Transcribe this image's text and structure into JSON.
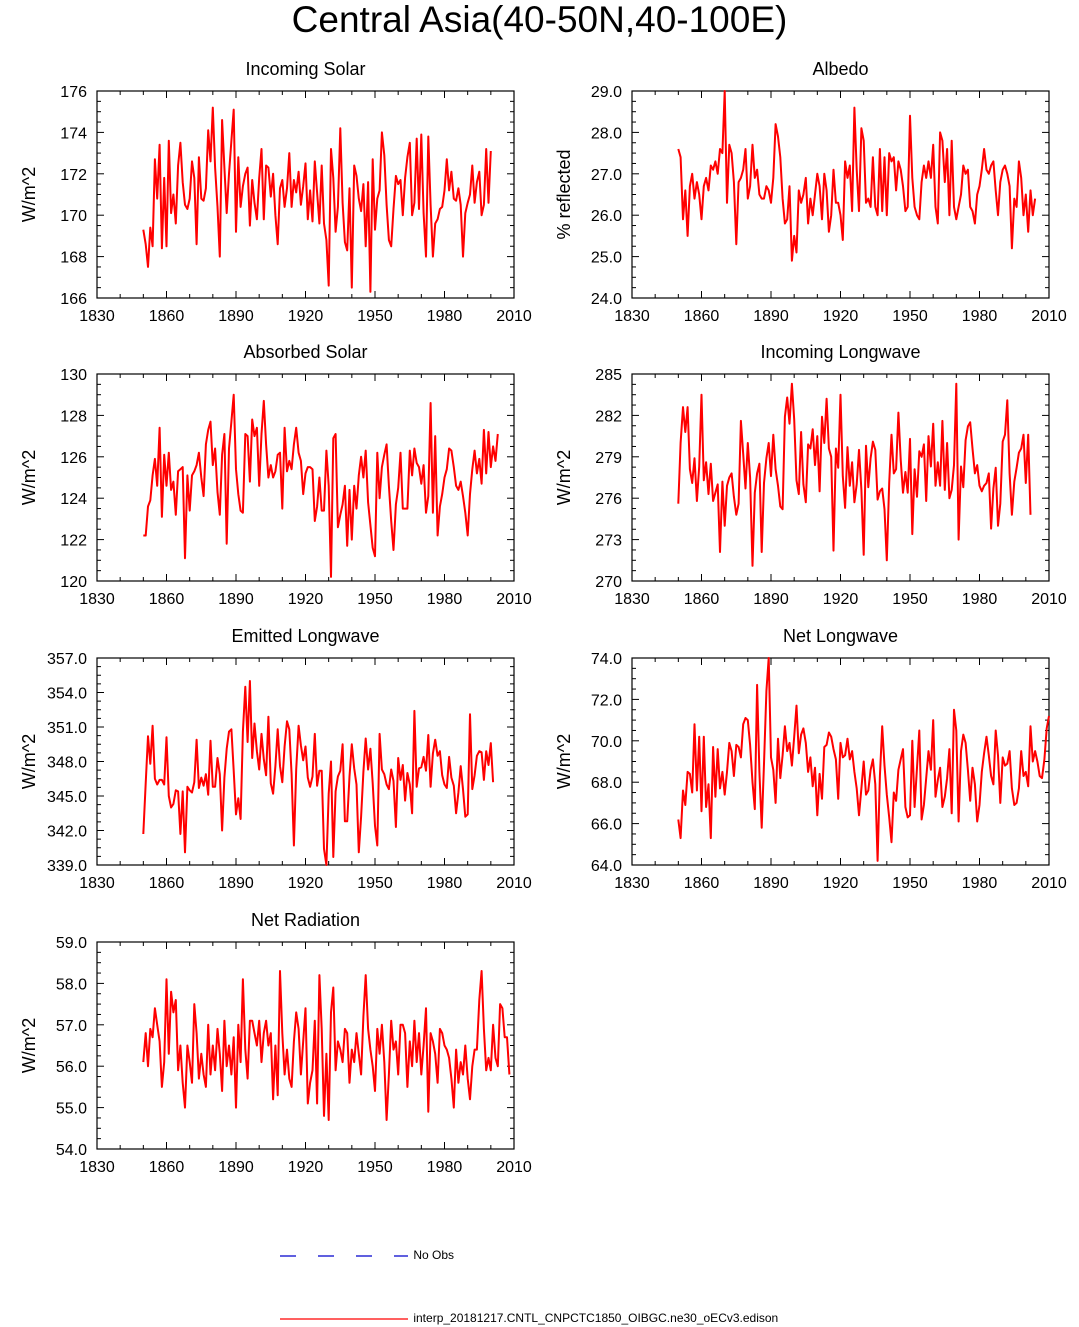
{
  "title": "Central Asia(40-50N,40-100E)",
  "legend": {
    "obs_label": "No Obs",
    "obs_color": "#0000cc",
    "model_label": "interp_20181217.CNTL_CNPCTC1850_OIBGC.ne30_oECv3.edison",
    "model_color": "#ff0000"
  },
  "chart_data": [
    {
      "type": "line",
      "title": "Incoming Solar",
      "ylabel": "W/m^2",
      "xlim": [
        1830,
        2010
      ],
      "ylim": [
        166,
        176
      ],
      "xticks": [
        1830,
        1860,
        1890,
        1920,
        1950,
        1980,
        2010
      ],
      "yticks": [
        "166",
        "168",
        "170",
        "172",
        "174",
        "176"
      ],
      "x_start": 1850,
      "x_step": 1,
      "values": [
        169.3,
        168.6,
        167.5,
        169.4,
        168.5,
        172.7,
        170.8,
        173.4,
        168.4,
        171.8,
        168.5,
        173.6,
        170.1,
        171.0,
        169.6,
        172.4,
        173.5,
        171.6,
        170.5,
        170.3,
        170.8,
        172.6,
        171.8,
        168.6,
        172.8,
        170.8,
        170.7,
        171.3,
        174.1,
        172.6,
        175.2,
        172.3,
        170.4,
        168.0,
        174.6,
        172.3,
        170.1,
        172.0,
        173.6,
        175.1,
        169.2,
        172.8,
        170.4,
        171.4,
        172.0,
        172.3,
        169.5,
        171.7,
        170.6,
        169.8,
        171.8,
        173.2,
        169.8,
        172.4,
        172.3,
        170.9,
        172.0,
        170.0,
        168.6,
        171.3,
        171.7,
        170.4,
        171.3,
        173.0,
        170.4,
        171.7,
        171.1,
        172.1,
        170.5,
        171.4,
        172.5,
        169.8,
        171.2,
        169.7,
        172.6,
        171.1,
        169.6,
        172.4,
        169.6,
        168.8,
        166.6,
        173.2,
        171.8,
        169.2,
        170.4,
        174.2,
        170.6,
        168.7,
        168.3,
        171.3,
        166.5,
        172.4,
        171.9,
        170.8,
        170.2,
        171.5,
        168.5,
        171.6,
        166.3,
        172.7,
        169.3,
        170.8,
        171.2,
        174.0,
        172.9,
        170.5,
        168.8,
        168.5,
        170.3,
        171.9,
        171.5,
        171.7,
        170.0,
        171.8,
        172.8,
        173.5,
        170.0,
        170.6,
        173.7,
        170.3,
        173.9,
        170.1,
        168.0,
        173.8,
        170.5,
        168.0,
        169.6,
        169.8,
        170.3,
        170.4,
        171.2,
        172.7,
        171.2,
        172.1,
        170.8,
        170.7,
        171.3,
        170.5,
        168.0,
        170.1,
        170.6,
        171.0,
        172.4,
        170.6,
        171.6,
        172.1,
        170.0,
        170.5,
        173.2,
        170.6,
        173.1
      ]
    },
    {
      "type": "line",
      "title": "Albedo",
      "ylabel": "% reflected",
      "xlim": [
        1830,
        2010
      ],
      "ylim": [
        24,
        29
      ],
      "xticks": [
        1830,
        1860,
        1890,
        1920,
        1950,
        1980,
        2010
      ],
      "yticks": [
        "24.0",
        "25.0",
        "26.0",
        "27.0",
        "28.0",
        "29.0"
      ],
      "x_start": 1850,
      "x_step": 1,
      "values": [
        27.6,
        27.4,
        25.9,
        26.6,
        25.5,
        26.7,
        27.0,
        26.4,
        26.8,
        26.5,
        25.9,
        26.7,
        26.9,
        26.6,
        27.2,
        27.1,
        27.3,
        27.0,
        27.6,
        27.5,
        29.0,
        26.3,
        27.7,
        27.5,
        26.8,
        25.3,
        26.8,
        26.9,
        27.1,
        27.6,
        26.4,
        26.7,
        27.7,
        26.9,
        27.1,
        26.5,
        26.4,
        26.4,
        26.7,
        26.6,
        26.3,
        26.9,
        28.2,
        27.9,
        27.4,
        26.4,
        25.8,
        25.9,
        26.7,
        24.9,
        25.5,
        25.1,
        26.6,
        26.3,
        26.5,
        26.9,
        25.8,
        26.4,
        26.0,
        26.5,
        27.0,
        26.7,
        25.9,
        27.0,
        26.6,
        25.6,
        26.0,
        27.1,
        26.3,
        26.3,
        26.0,
        25.4,
        27.3,
        26.9,
        27.2,
        26.1,
        28.6,
        27.1,
        26.1,
        28.1,
        27.8,
        26.3,
        26.4,
        26.2,
        27.4,
        26.2,
        26.0,
        27.6,
        26.1,
        27.4,
        26.0,
        27.5,
        27.3,
        27.4,
        26.6,
        27.3,
        27.1,
        26.7,
        26.1,
        26.2,
        28.4,
        26.9,
        26.2,
        26.0,
        25.9,
        26.8,
        27.2,
        26.9,
        27.3,
        26.9,
        27.7,
        26.2,
        25.8,
        28.0,
        27.8,
        26.8,
        27.6,
        26.0,
        27.8,
        26.2,
        25.9,
        26.2,
        26.5,
        27.2,
        27.0,
        27.1,
        26.2,
        26.1,
        25.8,
        26.5,
        26.7,
        27.1,
        27.6,
        27.1,
        27.0,
        27.2,
        27.3,
        26.6,
        26.0,
        26.8,
        27.1,
        27.2,
        27.0,
        26.7,
        25.2,
        26.4,
        26.2,
        27.3,
        26.9,
        26.0,
        26.5,
        25.6,
        26.6,
        26.0,
        26.4
      ]
    },
    {
      "type": "line",
      "title": "Absorbed Solar",
      "ylabel": "W/m^2",
      "xlim": [
        1830,
        2010
      ],
      "ylim": [
        120,
        130
      ],
      "xticks": [
        1830,
        1860,
        1890,
        1920,
        1950,
        1980,
        2010
      ],
      "yticks": [
        "120",
        "122",
        "124",
        "126",
        "128",
        "130"
      ],
      "x_start": 1850,
      "x_step": 1,
      "values": [
        122.2,
        122.2,
        123.6,
        123.9,
        125.1,
        125.9,
        124.6,
        127.4,
        123.1,
        126.1,
        124.6,
        126.2,
        124.4,
        124.8,
        123.2,
        125.3,
        125.4,
        125.5,
        121.1,
        125.1,
        123.4,
        125.1,
        125.3,
        125.6,
        126.2,
        125.0,
        124.1,
        126.6,
        127.3,
        127.7,
        125.6,
        126.4,
        124.3,
        123.2,
        126.1,
        127.1,
        121.8,
        126.4,
        127.7,
        129.0,
        125.4,
        124.2,
        123.4,
        123.3,
        127.1,
        127.0,
        124.8,
        127.8,
        127.0,
        127.4,
        124.6,
        127.1,
        128.7,
        126.6,
        125.0,
        125.6,
        125.0,
        125.3,
        126.1,
        126.2,
        123.5,
        127.4,
        125.3,
        125.8,
        125.4,
        126.6,
        127.4,
        126.2,
        125.8,
        124.2,
        125.2,
        125.5,
        125.5,
        125.4,
        122.9,
        123.6,
        125.0,
        123.4,
        123.4,
        126.3,
        124.6,
        120.2,
        126.9,
        127.1,
        122.6,
        123.2,
        123.7,
        124.6,
        121.7,
        124.4,
        122.0,
        124.6,
        123.5,
        125.1,
        126.0,
        125.0,
        126.3,
        123.8,
        122.7,
        121.6,
        121.2,
        126.2,
        124.0,
        125.5,
        126.1,
        126.6,
        124.6,
        122.9,
        121.5,
        123.7,
        124.5,
        126.2,
        123.5,
        123.5,
        123.5,
        126.3,
        125.1,
        126.4,
        125.7,
        125.5,
        124.7,
        125.6,
        123.3,
        124.1,
        128.6,
        123.3,
        127.0,
        122.2,
        123.6,
        124.2,
        125.0,
        125.4,
        126.4,
        126.3,
        125.5,
        124.6,
        124.4,
        124.8,
        124.1,
        123.3,
        122.2,
        124.2,
        125.4,
        126.3,
        125.2,
        125.9,
        124.7,
        127.3,
        125.2,
        127.2,
        125.5,
        126.5,
        125.8,
        127.1
      ]
    },
    {
      "type": "line",
      "title": "Incoming Longwave",
      "ylabel": "W/m^2",
      "xlim": [
        1830,
        2010
      ],
      "ylim": [
        270,
        285
      ],
      "xticks": [
        1830,
        1860,
        1890,
        1920,
        1950,
        1980,
        2010
      ],
      "yticks": [
        "270",
        "273",
        "276",
        "279",
        "282",
        "285"
      ],
      "x_start": 1850,
      "x_step": 1,
      "values": [
        275.6,
        280.0,
        282.6,
        280.8,
        282.6,
        278.1,
        277.1,
        278.9,
        275.8,
        278.3,
        283.5,
        277.3,
        278.6,
        276.3,
        278.5,
        275.8,
        276.4,
        277.0,
        272.1,
        277.2,
        274.0,
        276.9,
        277.5,
        277.8,
        276.1,
        274.8,
        275.6,
        281.6,
        279.2,
        276.7,
        280.0,
        277.5,
        271.1,
        276.4,
        277.8,
        278.5,
        272.1,
        277.1,
        278.9,
        280.0,
        277.6,
        280.6,
        278.1,
        276.9,
        275.4,
        275.2,
        281.9,
        283.3,
        281.4,
        284.3,
        281.7,
        277.3,
        276.3,
        280.8,
        277.0,
        275.7,
        279.9,
        279.6,
        281.0,
        278.4,
        280.5,
        276.5,
        281.9,
        280.0,
        283.2,
        279.6,
        279.0,
        272.2,
        279.6,
        278.2,
        283.5,
        277.6,
        275.3,
        279.7,
        276.9,
        278.6,
        275.7,
        277.0,
        279.5,
        276.6,
        271.9,
        279.8,
        276.8,
        278.9,
        280.1,
        279.5,
        275.9,
        276.5,
        276.7,
        275.2,
        271.5,
        277.1,
        280.6,
        277.8,
        278.1,
        282.2,
        278.8,
        276.4,
        277.9,
        276.4,
        280.3,
        273.4,
        278.1,
        276.1,
        279.4,
        279.0,
        279.9,
        275.8,
        280.5,
        278.3,
        281.4,
        276.9,
        278.6,
        276.9,
        281.6,
        276.6,
        280.0,
        276.0,
        276.6,
        278.4,
        284.3,
        273.0,
        278.3,
        276.8,
        280.2,
        281.2,
        281.5,
        279.6,
        277.8,
        278.4,
        276.9,
        276.5,
        276.9,
        277.1,
        277.8,
        273.8,
        276.7,
        278.2,
        274.0,
        275.6,
        280.1,
        280.6,
        283.1,
        277.8,
        274.8,
        277.2,
        278.2,
        279.3,
        279.6,
        280.6,
        277.1,
        280.6,
        274.8
      ]
    },
    {
      "type": "line",
      "title": "Emitted Longwave",
      "ylabel": "W/m^2",
      "xlim": [
        1830,
        2010
      ],
      "ylim": [
        339,
        357
      ],
      "xticks": [
        1830,
        1860,
        1890,
        1920,
        1950,
        1980,
        2010
      ],
      "yticks": [
        "339.0",
        "342.0",
        "345.0",
        "348.0",
        "351.0",
        "354.0",
        "357.0"
      ],
      "x_start": 1850,
      "x_step": 1,
      "values": [
        341.7,
        346.1,
        350.2,
        347.8,
        351.1,
        346.5,
        346.0,
        346.4,
        346.4,
        346.0,
        350.1,
        345.0,
        344.0,
        344.3,
        345.5,
        345.4,
        341.7,
        345.4,
        340.1,
        345.8,
        345.5,
        345.3,
        346.2,
        349.9,
        345.7,
        346.6,
        345.9,
        346.9,
        345.1,
        349.8,
        345.8,
        345.8,
        348.3,
        346.9,
        342.0,
        346.6,
        349.1,
        350.6,
        350.8,
        347.2,
        343.4,
        344.8,
        343.0,
        350.6,
        354.5,
        349.7,
        355.0,
        348.3,
        351.3,
        348.9,
        347.3,
        350.4,
        348.2,
        346.8,
        351.9,
        346.1,
        345.2,
        347.6,
        350.8,
        347.6,
        346.2,
        349.3,
        351.5,
        350.8,
        346.9,
        340.7,
        347.3,
        351.1,
        349.4,
        348.1,
        349.3,
        346.6,
        345.8,
        346.7,
        350.4,
        345.9,
        347.2,
        347.2,
        340.4,
        339.0,
        345.2,
        348.0,
        339.7,
        345.4,
        346.7,
        347.2,
        349.5,
        342.8,
        342.8,
        346.7,
        349.5,
        347.4,
        346.0,
        340.1,
        343.2,
        347.1,
        350.0,
        347.3,
        349.1,
        346.1,
        342.4,
        340.7,
        350.4,
        347.3,
        346.9,
        346.0,
        345.6,
        347.3,
        346.3,
        342.3,
        348.3,
        346.4,
        347.7,
        344.6,
        347.0,
        346.0,
        343.5,
        352.4,
        345.8,
        347.4,
        347.5,
        348.4,
        347.2,
        350.3,
        345.8,
        348.7,
        349.9,
        348.5,
        348.9,
        346.8,
        346.0,
        345.7,
        348.4,
        346.6,
        345.9,
        343.5,
        345.3,
        347.6,
        345.6,
        343.2,
        343.4,
        352.1,
        345.6,
        346.8,
        348.5,
        348.9,
        348.8,
        346.4,
        348.9,
        347.7,
        349.6,
        346.2
      ]
    },
    {
      "type": "line",
      "title": "Net Longwave",
      "ylabel": "W/m^2",
      "xlim": [
        1830,
        2010
      ],
      "ylim": [
        64,
        74
      ],
      "xticks": [
        1830,
        1860,
        1890,
        1920,
        1950,
        1980,
        2010
      ],
      "yticks": [
        "64.0",
        "66.0",
        "68.0",
        "70.0",
        "72.0",
        "74.0"
      ],
      "x_start": 1850,
      "x_step": 1,
      "values": [
        66.2,
        65.3,
        67.6,
        66.9,
        68.5,
        68.4,
        67.5,
        70.8,
        67.6,
        70.2,
        66.6,
        70.2,
        66.8,
        67.9,
        65.3,
        69.7,
        67.3,
        69.6,
        67.7,
        68.5,
        67.4,
        68.5,
        69.9,
        69.5,
        68.3,
        69.8,
        69.7,
        69.2,
        70.8,
        71.1,
        71.0,
        69.8,
        68.0,
        66.7,
        72.7,
        68.5,
        65.8,
        68.9,
        72.4,
        74.0,
        69.2,
        68.6,
        67.0,
        70.1,
        68.2,
        69.3,
        70.7,
        69.5,
        69.9,
        68.8,
        70.2,
        71.7,
        69.4,
        70.3,
        70.6,
        69.9,
        68.5,
        69.2,
        67.8,
        68.7,
        66.4,
        68.4,
        67.2,
        69.7,
        69.8,
        70.4,
        70.2,
        69.6,
        69.1,
        67.2,
        69.9,
        69.2,
        69.3,
        70.1,
        69.1,
        69.5,
        68.5,
        67.7,
        66.4,
        67.7,
        69.0,
        67.4,
        67.6,
        68.6,
        69.1,
        67.9,
        64.2,
        68.3,
        70.7,
        68.8,
        67.4,
        66.3,
        65.1,
        67.5,
        67.1,
        68.6,
        69.1,
        69.6,
        66.8,
        66.3,
        66.4,
        70.0,
        66.8,
        68.7,
        70.5,
        66.2,
        66.9,
        68.2,
        69.5,
        68.6,
        71.0,
        67.3,
        68.1,
        68.7,
        66.8,
        67.3,
        68.2,
        69.6,
        66.5,
        71.5,
        70.5,
        66.1,
        69.5,
        70.3,
        69.9,
        68.6,
        67.1,
        68.7,
        67.9,
        66.1,
        66.9,
        68.5,
        69.4,
        70.2,
        69.3,
        68.3,
        67.9,
        70.5,
        69.3,
        67.0,
        69.2,
        68.8,
        68.9,
        69.5,
        67.7,
        66.9,
        67.0,
        67.7,
        69.5,
        68.3,
        68.5,
        67.8,
        70.7,
        69.0,
        69.5,
        69.0,
        68.3,
        68.2,
        69.1,
        70.6,
        71.2
      ]
    },
    {
      "type": "line",
      "title": "Net Radiation",
      "ylabel": "W/m^2",
      "xlim": [
        1830,
        2010
      ],
      "ylim": [
        54,
        59
      ],
      "xticks": [
        1830,
        1860,
        1890,
        1920,
        1950,
        1980,
        2010
      ],
      "yticks": [
        "54.0",
        "55.0",
        "56.0",
        "57.0",
        "58.0",
        "59.0"
      ],
      "x_start": 1850,
      "x_step": 1,
      "values": [
        56.1,
        56.8,
        56.0,
        56.9,
        56.7,
        57.4,
        57.0,
        56.6,
        55.5,
        56.1,
        58.1,
        56.3,
        57.8,
        57.3,
        57.6,
        55.9,
        56.5,
        55.6,
        55.0,
        56.5,
        56.1,
        55.6,
        57.5,
        56.8,
        55.7,
        56.3,
        55.8,
        55.5,
        57.0,
        55.8,
        56.5,
        55.9,
        56.9,
        56.3,
        55.4,
        57.1,
        56.0,
        56.5,
        55.8,
        56.7,
        55.0,
        57.0,
        56.1,
        58.1,
        56.4,
        55.7,
        57.1,
        57.1,
        56.8,
        56.5,
        57.1,
        56.1,
        56.8,
        57.1,
        56.5,
        56.8,
        55.2,
        56.5,
        55.3,
        58.3,
        56.8,
        55.8,
        56.4,
        55.7,
        55.5,
        56.6,
        57.3,
        56.9,
        55.8,
        56.6,
        57.4,
        55.1,
        55.6,
        55.9,
        57.1,
        55.1,
        58.2,
        56.9,
        54.8,
        56.3,
        54.7,
        57.3,
        57.9,
        55.9,
        56.6,
        56.4,
        56.1,
        56.9,
        56.8,
        55.6,
        56.4,
        56.1,
        56.8,
        56.3,
        55.8,
        57.2,
        58.2,
        56.9,
        56.4,
        56.0,
        55.4,
        56.9,
        56.3,
        57.0,
        56.1,
        54.7,
        55.8,
        57.1,
        56.4,
        56.6,
        55.8,
        57.0,
        57.0,
        56.8,
        55.5,
        56.6,
        56.0,
        57.1,
        56.1,
        56.8,
        55.8,
        56.5,
        57.4,
        54.9,
        56.8,
        56.6,
        56.3,
        55.6,
        56.9,
        56.8,
        56.5,
        56.4,
        56.2,
        55.7,
        55.0,
        56.4,
        55.6,
        56.1,
        55.8,
        56.5,
        55.7,
        55.2,
        56.0,
        56.4,
        56.4,
        57.6,
        58.3,
        56.9,
        55.9,
        56.2,
        55.9,
        57.0,
        56.2,
        56.0,
        57.5,
        57.4,
        56.7,
        56.7,
        55.8
      ]
    }
  ]
}
